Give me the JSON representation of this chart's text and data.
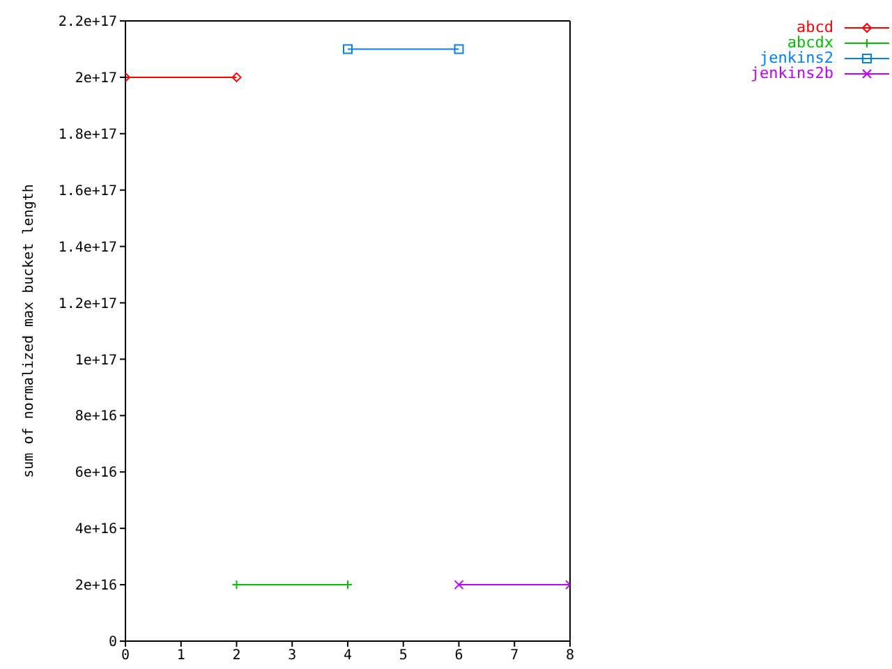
{
  "chart_data": {
    "type": "line",
    "ylabel": "sum of normalized max bucket length",
    "xlim": [
      0,
      8
    ],
    "xticks": [
      0,
      1,
      2,
      3,
      4,
      5,
      6,
      7,
      8
    ],
    "ylim": [
      0,
      2.2e+17
    ],
    "yticks": [
      0,
      {
        "value": 2e+16,
        "label": "2e+16"
      },
      {
        "value": 4e+16,
        "label": "4e+16"
      },
      {
        "value": 6e+16,
        "label": "6e+16"
      },
      {
        "value": 8e+16,
        "label": "8e+16"
      },
      {
        "value": 1e+17,
        "label": "1e+17"
      },
      {
        "value": 1.2e+17,
        "label": "1.2e+17"
      },
      {
        "value": 1.4e+17,
        "label": "1.4e+17"
      },
      {
        "value": 1.6e+17,
        "label": "1.6e+17"
      },
      {
        "value": 1.8e+17,
        "label": "1.8e+17"
      },
      {
        "value": 2e+17,
        "label": "2e+17"
      },
      {
        "value": 2.2e+17,
        "label": "2.2e+17"
      }
    ],
    "legend": "top right",
    "series": [
      {
        "name": "abcd",
        "color": "#ff0000",
        "marker": "diamond",
        "x": [
          0,
          2
        ],
        "values": [
          2e+17,
          2e+17
        ]
      },
      {
        "name": "abcdx",
        "color": "#00c000",
        "marker": "cross",
        "x": [
          2,
          4
        ],
        "values": [
          2e+16,
          2e+16
        ]
      },
      {
        "name": "jenkins2",
        "color": "#0080ff",
        "marker": "square",
        "x": [
          4,
          6
        ],
        "values": [
          2.1e+17,
          2.1e+17
        ]
      },
      {
        "name": "jenkins2b",
        "color": "#c000ff",
        "marker": "x",
        "x": [
          6,
          8
        ],
        "values": [
          2e+16,
          2e+16
        ]
      }
    ]
  }
}
